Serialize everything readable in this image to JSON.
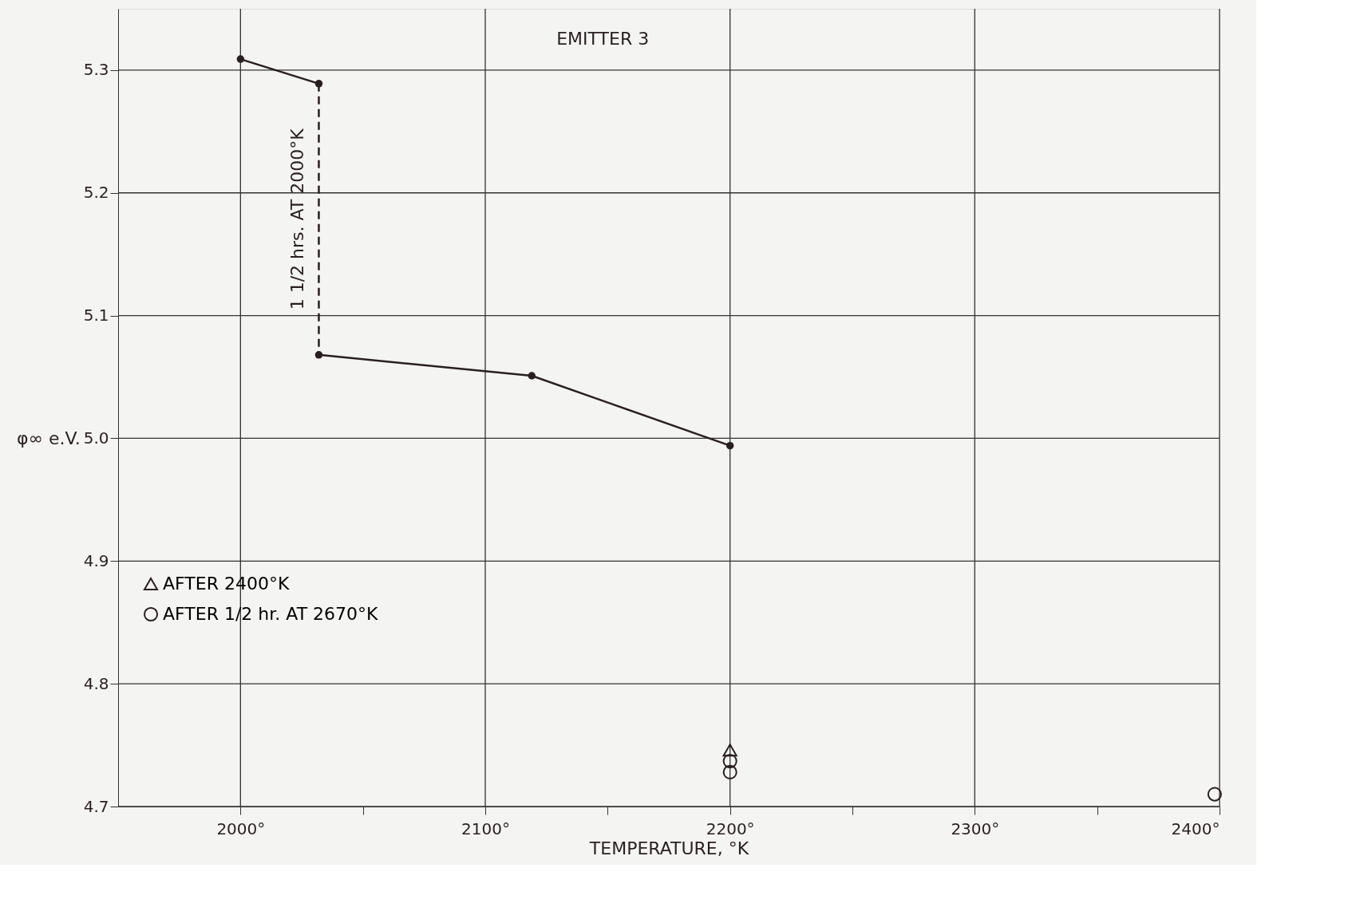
{
  "chart_data": {
    "type": "line",
    "title": "EMITTER 3",
    "xlabel": "TEMPERATURE, °K",
    "ylabel": "φ∞ e.V.",
    "xlim": [
      1950,
      2400
    ],
    "ylim": [
      4.7,
      5.35
    ],
    "xticks": [
      {
        "value": 2000,
        "label": "2000°"
      },
      {
        "value": 2050,
        "label": null
      },
      {
        "value": 2100,
        "label": "2100°"
      },
      {
        "value": 2150,
        "label": null
      },
      {
        "value": 2200,
        "label": "2200°"
      },
      {
        "value": 2250,
        "label": null
      },
      {
        "value": 2300,
        "label": "2300°"
      },
      {
        "value": 2350,
        "label": null
      },
      {
        "value": 2400,
        "label": "2400°"
      }
    ],
    "yticks": [
      4.7,
      4.8,
      4.9,
      {
        "value": 5.0,
        "label": "5.0"
      },
      5.1,
      5.2,
      5.3
    ],
    "grid": true,
    "legend": "left",
    "annotations": [
      "1 1/2 hrs. AT 2000°K"
    ],
    "series": [
      {
        "color": "#2a1f1f",
        "marker": "circle",
        "line_style": "solid",
        "x": [
          2000,
          2032
        ],
        "values": [
          5.309,
          5.289
        ]
      },
      {
        "color": "#2a1f1f",
        "marker": "circle",
        "line_style": "solid",
        "x": [
          2032,
          2119,
          2200
        ],
        "values": [
          5.068,
          5.051,
          4.994
        ]
      },
      {
        "color": "#2a1f1f",
        "marker": "none",
        "line_style": "dashed",
        "x": [
          2032,
          2032
        ],
        "values": [
          5.289,
          5.068
        ]
      },
      {
        "type": "scatter",
        "name": "AFTER 2400°K",
        "color": "#2a1f1f",
        "marker": "triangle",
        "x": [
          2200
        ],
        "values": [
          4.746
        ]
      },
      {
        "type": "scatter",
        "name": "AFTER 1/2 hr. AT 2670°K",
        "color": "#2a1f1f",
        "marker": "circle",
        "x": [
          2200,
          2200,
          2398
        ],
        "values": [
          4.737,
          4.728,
          4.71
        ]
      }
    ]
  }
}
